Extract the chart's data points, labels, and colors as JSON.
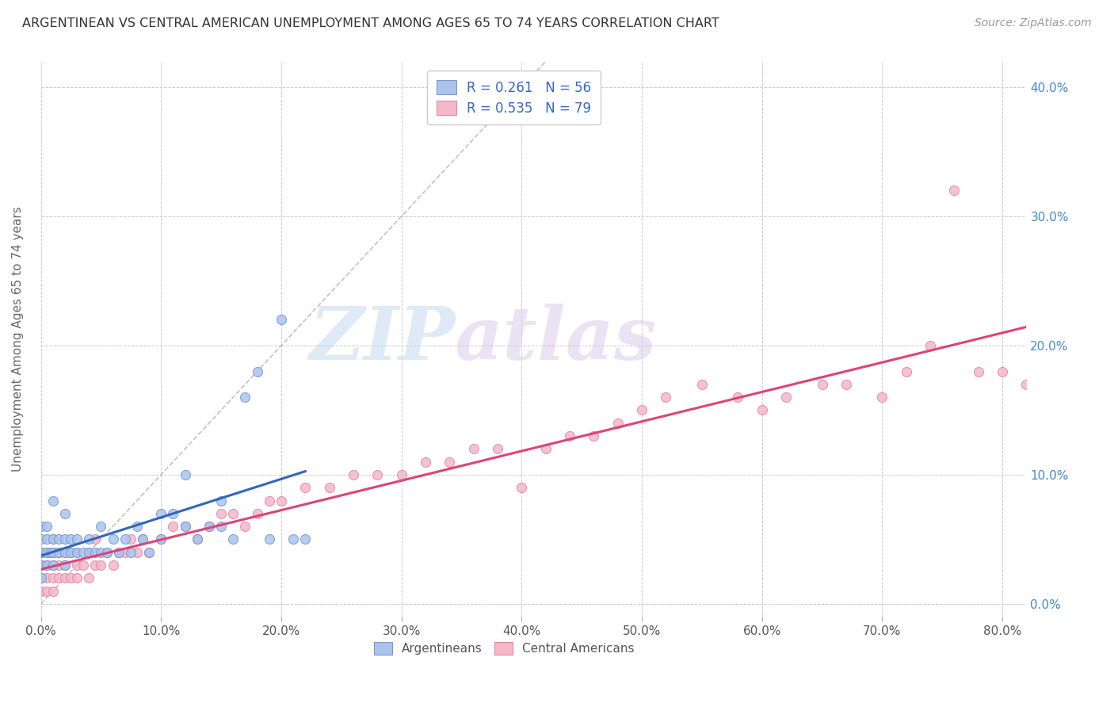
{
  "title": "ARGENTINEAN VS CENTRAL AMERICAN UNEMPLOYMENT AMONG AGES 65 TO 74 YEARS CORRELATION CHART",
  "source": "Source: ZipAtlas.com",
  "ylabel": "Unemployment Among Ages 65 to 74 years",
  "xlim": [
    0.0,
    0.82
  ],
  "ylim": [
    -0.01,
    0.42
  ],
  "argentinean_color": "#aac4ee",
  "central_american_color": "#f5b8cb",
  "argentinean_edge": "#7799cc",
  "central_american_edge": "#dd88aa",
  "trend_argentinean_color": "#3366bb",
  "trend_central_american_color": "#dd4477",
  "trend_diagonal_color": "#aaaaaa",
  "R_argentinean": 0.261,
  "N_argentinean": 56,
  "R_central_american": 0.535,
  "N_central_american": 79,
  "watermark_zip": "ZIP",
  "watermark_atlas": "atlas",
  "argentinean_x": [
    0.0,
    0.0,
    0.0,
    0.0,
    0.0,
    0.0,
    0.0,
    0.005,
    0.005,
    0.005,
    0.005,
    0.008,
    0.01,
    0.01,
    0.01,
    0.01,
    0.015,
    0.015,
    0.02,
    0.02,
    0.02,
    0.02,
    0.025,
    0.025,
    0.03,
    0.03,
    0.035,
    0.04,
    0.04,
    0.045,
    0.05,
    0.05,
    0.055,
    0.06,
    0.065,
    0.07,
    0.075,
    0.08,
    0.085,
    0.09,
    0.1,
    0.1,
    0.11,
    0.12,
    0.12,
    0.13,
    0.14,
    0.15,
    0.15,
    0.16,
    0.17,
    0.18,
    0.19,
    0.2,
    0.21,
    0.22
  ],
  "argentinean_y": [
    0.02,
    0.03,
    0.03,
    0.04,
    0.04,
    0.05,
    0.06,
    0.03,
    0.04,
    0.05,
    0.06,
    0.04,
    0.03,
    0.04,
    0.05,
    0.08,
    0.04,
    0.05,
    0.03,
    0.04,
    0.05,
    0.07,
    0.04,
    0.05,
    0.04,
    0.05,
    0.04,
    0.04,
    0.05,
    0.04,
    0.04,
    0.06,
    0.04,
    0.05,
    0.04,
    0.05,
    0.04,
    0.06,
    0.05,
    0.04,
    0.05,
    0.07,
    0.07,
    0.06,
    0.1,
    0.05,
    0.06,
    0.06,
    0.08,
    0.05,
    0.16,
    0.18,
    0.05,
    0.22,
    0.05,
    0.05
  ],
  "central_american_x": [
    0.0,
    0.0,
    0.0,
    0.0,
    0.0,
    0.005,
    0.005,
    0.005,
    0.005,
    0.01,
    0.01,
    0.01,
    0.01,
    0.01,
    0.015,
    0.015,
    0.015,
    0.02,
    0.02,
    0.02,
    0.025,
    0.025,
    0.03,
    0.03,
    0.03,
    0.035,
    0.04,
    0.04,
    0.045,
    0.045,
    0.05,
    0.055,
    0.06,
    0.065,
    0.07,
    0.075,
    0.08,
    0.085,
    0.09,
    0.1,
    0.11,
    0.12,
    0.13,
    0.14,
    0.15,
    0.16,
    0.17,
    0.18,
    0.19,
    0.2,
    0.22,
    0.24,
    0.26,
    0.28,
    0.3,
    0.32,
    0.34,
    0.36,
    0.38,
    0.4,
    0.42,
    0.44,
    0.46,
    0.48,
    0.5,
    0.52,
    0.55,
    0.58,
    0.6,
    0.62,
    0.65,
    0.67,
    0.7,
    0.72,
    0.74,
    0.76,
    0.78,
    0.8,
    0.82
  ],
  "central_american_y": [
    0.01,
    0.02,
    0.02,
    0.03,
    0.04,
    0.01,
    0.02,
    0.03,
    0.04,
    0.01,
    0.02,
    0.03,
    0.04,
    0.05,
    0.02,
    0.03,
    0.04,
    0.02,
    0.03,
    0.04,
    0.02,
    0.04,
    0.02,
    0.03,
    0.04,
    0.03,
    0.02,
    0.04,
    0.03,
    0.05,
    0.03,
    0.04,
    0.03,
    0.04,
    0.04,
    0.05,
    0.04,
    0.05,
    0.04,
    0.05,
    0.06,
    0.06,
    0.05,
    0.06,
    0.07,
    0.07,
    0.06,
    0.07,
    0.08,
    0.08,
    0.09,
    0.09,
    0.1,
    0.1,
    0.1,
    0.11,
    0.11,
    0.12,
    0.12,
    0.09,
    0.12,
    0.13,
    0.13,
    0.14,
    0.15,
    0.16,
    0.17,
    0.16,
    0.15,
    0.16,
    0.17,
    0.17,
    0.16,
    0.18,
    0.2,
    0.32,
    0.18,
    0.18,
    0.17
  ]
}
